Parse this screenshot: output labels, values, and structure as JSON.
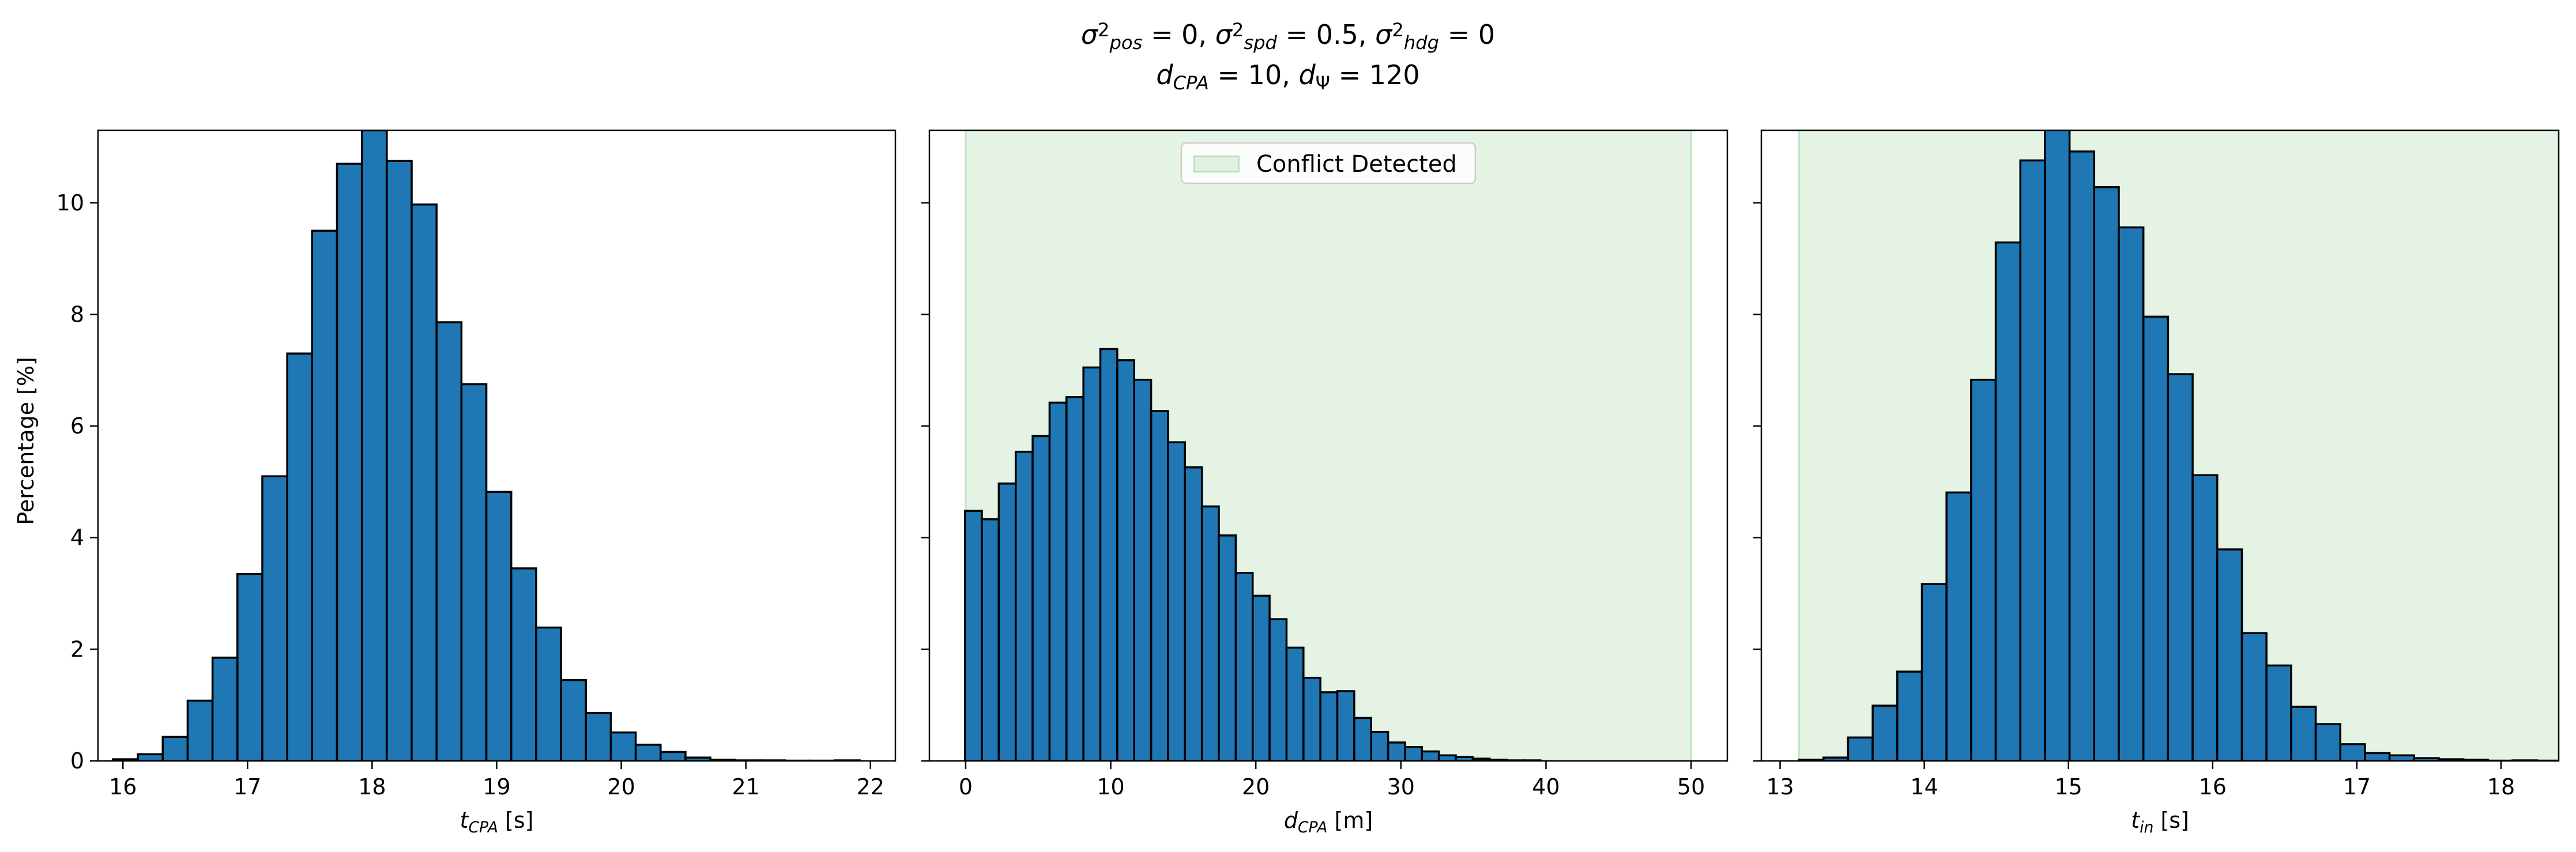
{
  "figure": {
    "title_line1": "σ²pos = 0, σ²spd = 0.5, σ²hdg = 0",
    "title_line2": "dCPA = 10, dΨ = 120",
    "title_rich": [
      [
        {
          "t": "σ",
          "i": true
        },
        {
          "t": "2",
          "sup": true
        },
        {
          "t": "pos",
          "sub": true,
          "i": true
        },
        {
          "t": " = 0, "
        },
        {
          "t": "σ",
          "i": true
        },
        {
          "t": "2",
          "sup": true
        },
        {
          "t": "spd",
          "sub": true,
          "i": true
        },
        {
          "t": " = 0.5, "
        },
        {
          "t": "σ",
          "i": true
        },
        {
          "t": "2",
          "sup": true
        },
        {
          "t": "hdg",
          "sub": true,
          "i": true
        },
        {
          "t": " = 0"
        }
      ],
      [
        {
          "t": "d",
          "i": true
        },
        {
          "t": "CPA",
          "sub": true,
          "i": true
        },
        {
          "t": " = 10, "
        },
        {
          "t": "d",
          "i": true
        },
        {
          "t": "Ψ",
          "sub": true
        },
        {
          "t": " = 120"
        }
      ]
    ],
    "shared_ylabel": "Percentage [%]",
    "bar_color": "#1f77b4",
    "edge_color": "#000000",
    "shade_color": "#2ca02c"
  },
  "chart_data": [
    {
      "type": "bar",
      "xlabel": "tCPA [s]",
      "xlabel_rich": [
        {
          "t": "t",
          "i": true
        },
        {
          "t": "CPA",
          "sub": true,
          "i": true
        },
        {
          "t": " [s]"
        }
      ],
      "ylabel": "Percentage [%]",
      "xlim": [
        15.8,
        22.2
      ],
      "ylim": [
        0,
        11.3
      ],
      "xticks": [
        16,
        17,
        18,
        19,
        20,
        21,
        22
      ],
      "yticks": [
        0,
        2,
        4,
        6,
        8,
        10
      ],
      "bin_start": 15.92,
      "bin_width": 0.1998,
      "values": [
        0.03,
        0.12,
        0.43,
        1.08,
        1.85,
        3.35,
        5.1,
        7.3,
        9.5,
        10.7,
        11.3,
        10.75,
        9.97,
        7.86,
        6.75,
        4.82,
        3.45,
        2.39,
        1.45,
        0.86,
        0.51,
        0.29,
        0.16,
        0.06,
        0.02,
        0.01,
        0.01,
        0.005,
        0.005,
        0.01
      ],
      "shaded_region": null,
      "legend": null
    },
    {
      "type": "bar",
      "xlabel": "dCPA [m]",
      "xlabel_rich": [
        {
          "t": "d",
          "i": true
        },
        {
          "t": "CPA",
          "sub": true,
          "i": true
        },
        {
          "t": " [m]"
        }
      ],
      "ylabel": "",
      "xlim": [
        -2.5,
        52.5
      ],
      "ylim": [
        0,
        11.3
      ],
      "xticks": [
        0,
        10,
        20,
        30,
        40,
        50
      ],
      "yticks": [
        0,
        2,
        4,
        6,
        8,
        10
      ],
      "bin_start": -0.05,
      "bin_width": 1.1667,
      "values": [
        4.48,
        4.33,
        4.97,
        5.54,
        5.82,
        6.42,
        6.52,
        7.05,
        7.38,
        7.18,
        6.83,
        6.27,
        5.71,
        5.26,
        4.56,
        4.04,
        3.37,
        2.96,
        2.54,
        2.03,
        1.49,
        1.23,
        1.25,
        0.77,
        0.52,
        0.33,
        0.25,
        0.17,
        0.1,
        0.07,
        0.04,
        0.02,
        0.01,
        0.01
      ],
      "shaded_region": [
        0,
        50
      ],
      "legend": "Conflict Detected",
      "legend_position": "upper center"
    },
    {
      "type": "bar",
      "xlabel": "tin [s]",
      "xlabel_rich": [
        {
          "t": "t",
          "i": true
        },
        {
          "t": "in",
          "sub": true,
          "i": true
        },
        {
          "t": " [s]"
        }
      ],
      "ylabel": "",
      "xlim": [
        12.87,
        18.4
      ],
      "ylim": [
        0,
        11.3
      ],
      "xticks": [
        13,
        14,
        15,
        16,
        17,
        18
      ],
      "yticks": [
        0,
        2,
        4,
        6,
        8,
        10
      ],
      "bin_start": 13.13,
      "bin_width": 0.1707,
      "values": [
        0.02,
        0.06,
        0.42,
        0.99,
        1.6,
        3.17,
        4.81,
        6.83,
        9.29,
        10.76,
        11.4,
        10.92,
        10.28,
        9.56,
        7.96,
        6.93,
        5.12,
        3.79,
        2.29,
        1.71,
        0.97,
        0.66,
        0.3,
        0.14,
        0.1,
        0.05,
        0.03,
        0.02,
        0.005,
        0.01,
        0.005
      ],
      "shaded_region": [
        13.13,
        18.4
      ],
      "legend": null
    }
  ]
}
